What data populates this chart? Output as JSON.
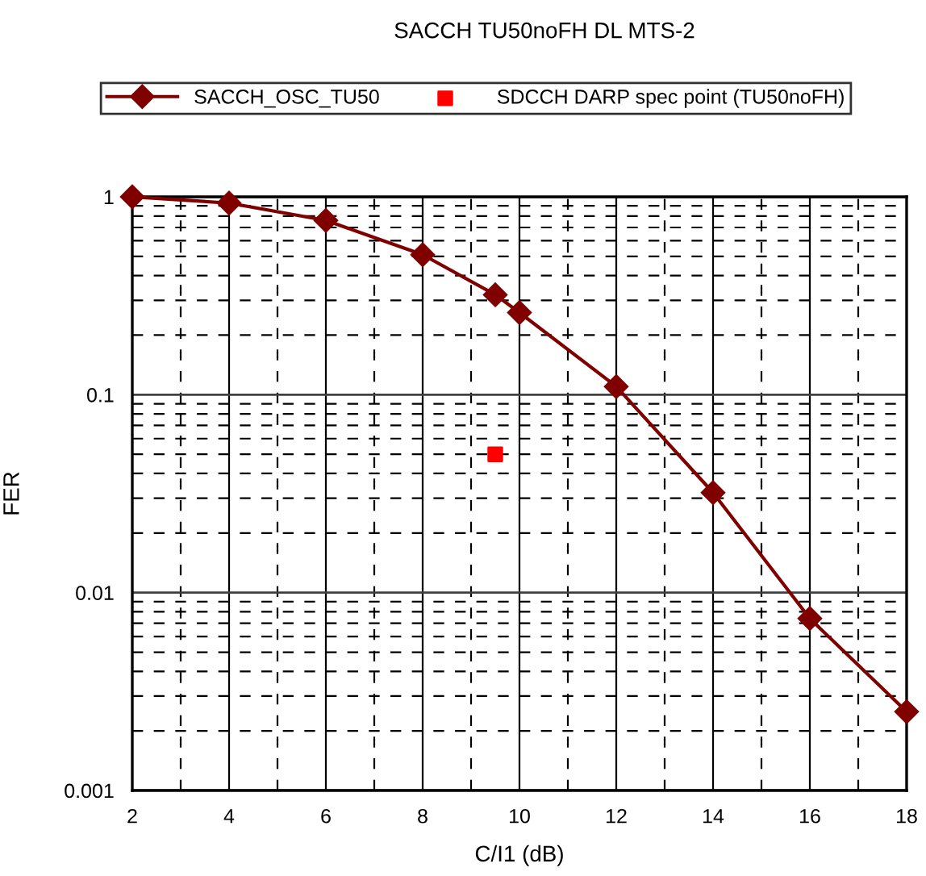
{
  "chart_data": {
    "type": "line",
    "title": "SACCH TU50noFH DL MTS-2",
    "xlabel": "C/I1 (dB)",
    "ylabel": "FER",
    "log": "y",
    "xlim": [
      2,
      18
    ],
    "xticks": [
      2,
      4,
      6,
      8,
      10,
      12,
      14,
      16,
      18
    ],
    "ylim": [
      0.001,
      1
    ],
    "yticks": [
      {
        "value": 0.001,
        "label": "0.001"
      },
      {
        "value": 0.01,
        "label": "0.01"
      },
      {
        "value": 0.1,
        "label": "0.1"
      },
      {
        "value": 1,
        "label": "1"
      }
    ],
    "grid": true,
    "legend": "top",
    "series": [
      {
        "name": "SACCH_OSC_TU50",
        "color": "#800000",
        "marker": "diamond",
        "line_style": "solid",
        "x": [
          2,
          4,
          6,
          8,
          9.5,
          10,
          12,
          14,
          16,
          18
        ],
        "values": [
          1,
          0.93,
          0.76,
          0.51,
          0.32,
          0.26,
          0.11,
          0.032,
          0.0074,
          0.0025
        ]
      },
      {
        "name": "SDCCH DARP spec point (TU50noFH)",
        "type": "scatter",
        "color": "#ff0000",
        "marker": "square",
        "x": [
          9.5
        ],
        "values": [
          0.05
        ]
      }
    ]
  }
}
